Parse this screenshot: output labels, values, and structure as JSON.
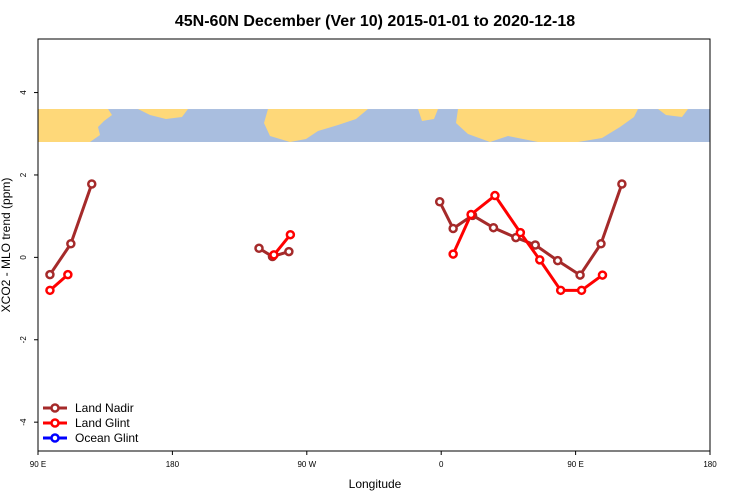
{
  "chart_data": {
    "type": "line",
    "title": "45N-60N December (Ver 10)   2015-01-01 to 2020-12-18",
    "xlabel": "Longitude",
    "ylabel": "XCO2 - MLO trend (ppm)",
    "x_ticks": [
      {
        "value": 90,
        "label": "90 E"
      },
      {
        "value": 180,
        "label": "180"
      },
      {
        "value": 270,
        "label": "90 W"
      },
      {
        "value": 360,
        "label": "0"
      },
      {
        "value": 450,
        "label": "90 E"
      },
      {
        "value": 540,
        "label": "180"
      }
    ],
    "y_ticks": [
      {
        "value": -4,
        "label": "-4"
      },
      {
        "value": -2,
        "label": "-2"
      },
      {
        "value": 0,
        "label": "0"
      },
      {
        "value": 2,
        "label": "2"
      },
      {
        "value": 4,
        "label": "4"
      }
    ],
    "xlim": [
      90,
      540
    ],
    "ylim": [
      -4.7,
      5.3
    ],
    "map_band": {
      "y_range": [
        2.8,
        3.6
      ],
      "ocean_color": "#a9bedf",
      "land_color": "#fed879"
    },
    "series": [
      {
        "name": "Land Nadir",
        "color": "#a52a2a",
        "segments": [
          [
            [
              98,
              -0.42
            ],
            [
              112,
              0.33
            ],
            [
              126,
              1.78
            ]
          ],
          [
            [
              238,
              0.22
            ],
            [
              247,
              0.02
            ],
            [
              258,
              0.14
            ]
          ],
          [
            [
              359,
              1.35
            ],
            [
              368,
              0.7
            ],
            [
              381,
              1.02
            ],
            [
              395,
              0.72
            ],
            [
              410,
              0.48
            ],
            [
              423,
              0.3
            ],
            [
              438,
              -0.08
            ],
            [
              453,
              -0.43
            ],
            [
              467,
              0.33
            ],
            [
              481,
              1.78
            ]
          ]
        ]
      },
      {
        "name": "Land Glint",
        "color": "#ff0000",
        "segments": [
          [
            [
              98,
              -0.8
            ],
            [
              110,
              -0.42
            ]
          ],
          [
            [
              248,
              0.06
            ],
            [
              259,
              0.55
            ]
          ],
          [
            [
              368,
              0.08
            ],
            [
              380,
              1.04
            ],
            [
              396,
              1.5
            ],
            [
              413,
              0.6
            ],
            [
              426,
              -0.06
            ],
            [
              440,
              -0.8
            ],
            [
              454,
              -0.8
            ],
            [
              468,
              -0.43
            ]
          ]
        ]
      },
      {
        "name": "Ocean Glint",
        "color": "#0000ff",
        "segments": []
      }
    ],
    "legend": {
      "position": "bottom-left"
    },
    "grid": false
  }
}
